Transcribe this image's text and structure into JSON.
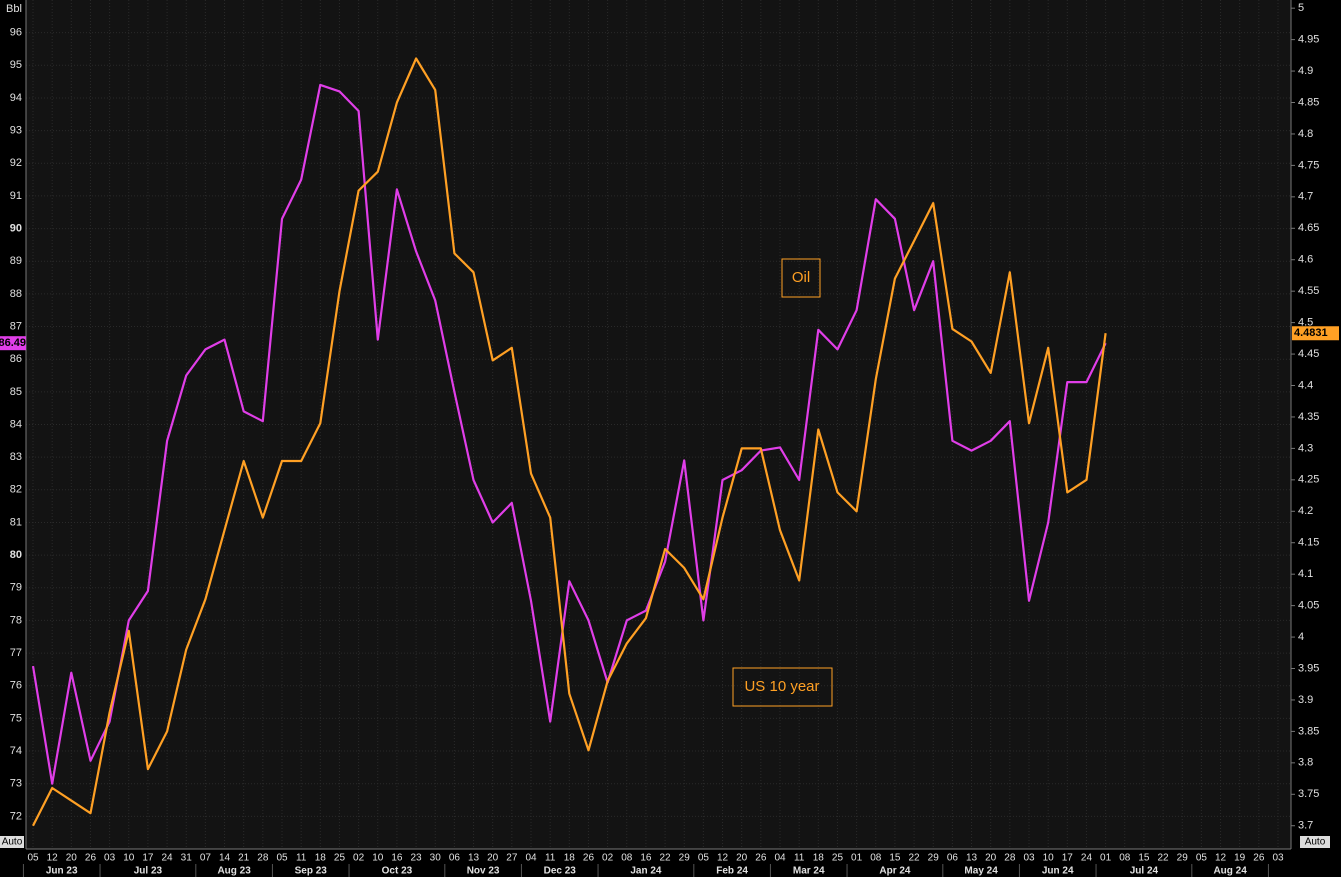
{
  "chart_data": {
    "type": "line",
    "left_axis_label": "Bbl",
    "left_axis_mode": "Auto",
    "right_axis_mode": "Auto",
    "months": [
      {
        "label": "Jun 23",
        "days": [
          "05",
          "12",
          "20",
          "26"
        ]
      },
      {
        "label": "Jul 23",
        "days": [
          "03",
          "10",
          "17",
          "24",
          "31"
        ]
      },
      {
        "label": "Aug 23",
        "days": [
          "07",
          "14",
          "21",
          "28"
        ]
      },
      {
        "label": "Sep 23",
        "days": [
          "05",
          "11",
          "18",
          "25"
        ]
      },
      {
        "label": "Oct 23",
        "days": [
          "02",
          "10",
          "16",
          "23",
          "30"
        ]
      },
      {
        "label": "Nov 23",
        "days": [
          "06",
          "13",
          "20",
          "27"
        ]
      },
      {
        "label": "Dec 23",
        "days": [
          "04",
          "11",
          "18",
          "26"
        ]
      },
      {
        "label": "Jan 24",
        "days": [
          "02",
          "08",
          "16",
          "22",
          "29"
        ]
      },
      {
        "label": "Feb 24",
        "days": [
          "05",
          "12",
          "20",
          "26"
        ]
      },
      {
        "label": "Mar 24",
        "days": [
          "04",
          "11",
          "18",
          "25"
        ]
      },
      {
        "label": "Apr 24",
        "days": [
          "01",
          "08",
          "15",
          "22",
          "29"
        ]
      },
      {
        "label": "May 24",
        "days": [
          "06",
          "13",
          "20",
          "28"
        ]
      },
      {
        "label": "Jun 24",
        "days": [
          "03",
          "10",
          "17",
          "24"
        ]
      },
      {
        "label": "Jul 24",
        "days": [
          "01",
          "08",
          "15",
          "22",
          "29"
        ]
      },
      {
        "label": "Aug 24",
        "days": [
          "05",
          "12",
          "19",
          "26"
        ]
      },
      {
        "label": null,
        "days": [
          "03"
        ]
      }
    ],
    "series": [
      {
        "name": "Oil",
        "color": "#e03ee8",
        "axis": "y",
        "values": [
          76.6,
          73.0,
          76.4,
          73.7,
          74.9,
          78.0,
          78.9,
          83.5,
          85.5,
          86.3,
          86.6,
          84.4,
          84.1,
          90.3,
          91.5,
          94.4,
          94.2,
          93.6,
          86.6,
          91.2,
          89.3,
          87.8,
          85.0,
          82.3,
          81.0,
          81.6,
          78.6,
          74.9,
          79.2,
          78.0,
          76.1,
          78.0,
          78.3,
          79.8,
          82.9,
          78.0,
          82.3,
          82.6,
          83.2,
          83.3,
          82.3,
          86.9,
          86.3,
          87.5,
          90.9,
          90.3,
          87.5,
          89.0,
          83.5,
          83.2,
          83.5,
          84.1,
          78.6,
          81.0,
          85.3,
          85.3,
          86.49,
          null,
          null,
          null,
          null,
          null,
          null,
          null,
          null,
          null
        ]
      },
      {
        "name": "US 10 year",
        "color": "#ffa024",
        "axis": "y2",
        "values": [
          3.7,
          3.76,
          3.74,
          3.72,
          3.88,
          4.01,
          3.79,
          3.85,
          3.98,
          4.06,
          4.17,
          4.28,
          4.19,
          4.28,
          4.28,
          4.34,
          4.55,
          4.71,
          4.74,
          4.85,
          4.92,
          4.87,
          4.61,
          4.58,
          4.44,
          4.46,
          4.26,
          4.19,
          3.91,
          3.82,
          3.93,
          3.99,
          4.03,
          4.14,
          4.11,
          4.06,
          4.19,
          4.3,
          4.3,
          4.17,
          4.09,
          4.33,
          4.23,
          4.2,
          4.41,
          4.57,
          4.63,
          4.69,
          4.49,
          4.47,
          4.42,
          4.58,
          4.34,
          4.46,
          4.23,
          4.25,
          4.4831,
          null,
          null,
          null,
          null,
          null,
          null,
          null,
          null,
          null
        ]
      }
    ],
    "ylim": [
      71,
      97
    ],
    "yticks": [
      72,
      73,
      74,
      75,
      76,
      77,
      78,
      79,
      80,
      81,
      82,
      83,
      84,
      85,
      86,
      87,
      88,
      89,
      90,
      91,
      92,
      93,
      94,
      95,
      96
    ],
    "y2lim": [
      3.663,
      5.013
    ],
    "y2ticks": [
      3.7,
      3.75,
      3.8,
      3.85,
      3.9,
      3.95,
      4,
      4.05,
      4.1,
      4.15,
      4.2,
      4.25,
      4.3,
      4.35,
      4.4,
      4.45,
      4.5,
      4.55,
      4.6,
      4.65,
      4.7,
      4.75,
      4.8,
      4.85,
      4.9,
      4.95,
      5
    ],
    "grid": true
  }
}
